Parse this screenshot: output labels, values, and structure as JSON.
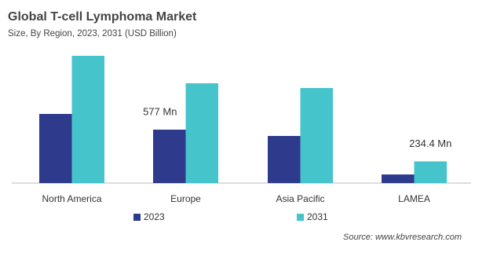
{
  "chart_data": {
    "type": "bar",
    "title": "Global  T-cell Lymphoma Market",
    "subtitle": "Size, By Region, 2023, 2031 (USD Billion)",
    "categories": [
      "North America",
      "Europe",
      "Asia Pacific",
      "LAMEA"
    ],
    "series": [
      {
        "name": "2023",
        "color": "#2e3a8c",
        "values": [
          747,
          577,
          509,
          93
        ],
        "value_labels": [
          null,
          "577  Mn",
          null,
          null
        ]
      },
      {
        "name": "2031",
        "color": "#45c4cc",
        "values": [
          1375,
          1078,
          1027,
          234.4
        ],
        "value_labels": [
          null,
          null,
          null,
          "234.4  Mn"
        ]
      }
    ],
    "source": "Source: www.kbvresearch.com"
  }
}
